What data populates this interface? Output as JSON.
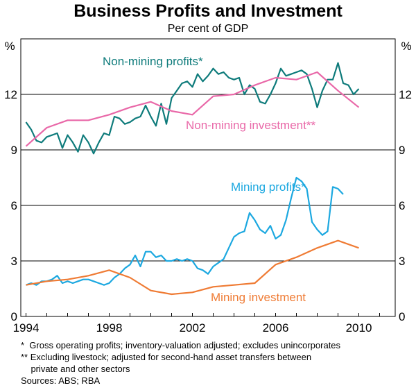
{
  "chart_data": {
    "type": "line",
    "title": "Business Profits and Investment",
    "subtitle": "Per cent of GDP",
    "y_unit_left": "%",
    "y_unit_right": "%",
    "ylim": [
      0,
      15
    ],
    "yticks": [
      0,
      3,
      6,
      9,
      12
    ],
    "xlim": [
      1993.75,
      2011.75
    ],
    "xticks": [
      1994,
      1998,
      2002,
      2006,
      2010
    ],
    "series": [
      {
        "name": "Non-mining profits*",
        "color": "#0e7b7b",
        "x": [
          1994.0,
          1994.25,
          1994.5,
          1994.75,
          1995.0,
          1995.25,
          1995.5,
          1995.75,
          1996.0,
          1996.25,
          1996.5,
          1996.75,
          1997.0,
          1997.25,
          1997.5,
          1997.75,
          1998.0,
          1998.25,
          1998.5,
          1998.75,
          1999.0,
          1999.25,
          1999.5,
          1999.75,
          2000.0,
          2000.25,
          2000.5,
          2000.75,
          2001.0,
          2001.25,
          2001.5,
          2001.75,
          2002.0,
          2002.25,
          2002.5,
          2002.75,
          2003.0,
          2003.25,
          2003.5,
          2003.75,
          2004.0,
          2004.25,
          2004.5,
          2004.75,
          2005.0,
          2005.25,
          2005.5,
          2005.75,
          2006.0,
          2006.25,
          2006.5,
          2006.75,
          2007.0,
          2007.25,
          2007.5,
          2007.75,
          2008.0,
          2008.25,
          2008.5,
          2008.75,
          2009.0,
          2009.25,
          2009.5,
          2009.75,
          2010.0,
          2010.25,
          2010.5,
          2010.75
        ],
        "values": [
          10.5,
          10.1,
          9.5,
          9.4,
          9.7,
          9.8,
          9.9,
          9.1,
          9.8,
          9.4,
          8.9,
          9.8,
          9.4,
          8.8,
          9.4,
          9.9,
          9.8,
          10.8,
          10.7,
          10.4,
          10.5,
          10.7,
          10.8,
          11.4,
          10.8,
          10.3,
          11.5,
          10.4,
          11.8,
          12.2,
          12.6,
          12.7,
          12.4,
          13.1,
          12.7,
          13.0,
          13.4,
          13.1,
          13.2,
          12.9,
          12.8,
          12.9,
          12.0,
          12.5,
          12.3,
          11.6,
          11.5,
          12.0,
          12.6,
          13.4,
          13.0,
          13.1,
          13.2,
          13.3,
          13.1,
          12.3,
          11.3,
          12.2,
          12.8,
          12.8,
          13.7,
          12.6,
          12.5,
          12.0,
          12.3,
          null,
          null,
          null
        ]
      },
      {
        "name": "Non-mining investment**",
        "color": "#e968a8",
        "x": [
          1994.0,
          1995.0,
          1996.0,
          1997.0,
          1998.0,
          1999.0,
          2000.0,
          2001.0,
          2002.0,
          2003.0,
          2004.0,
          2005.0,
          2006.0,
          2007.0,
          2008.0,
          2009.0,
          2010.0
        ],
        "values": [
          9.2,
          10.2,
          10.6,
          10.6,
          10.9,
          11.3,
          11.6,
          11.1,
          10.9,
          11.9,
          12.0,
          12.5,
          12.9,
          12.8,
          13.2,
          12.2,
          11.3
        ]
      },
      {
        "name": "Mining profits*",
        "color": "#1ca8e0",
        "x": [
          1994.0,
          1994.25,
          1994.5,
          1994.75,
          1995.0,
          1995.25,
          1995.5,
          1995.75,
          1996.0,
          1996.25,
          1996.5,
          1996.75,
          1997.0,
          1997.25,
          1997.5,
          1997.75,
          1998.0,
          1998.25,
          1998.5,
          1998.75,
          1999.0,
          1999.25,
          1999.5,
          1999.75,
          2000.0,
          2000.25,
          2000.5,
          2000.75,
          2001.0,
          2001.25,
          2001.5,
          2001.75,
          2002.0,
          2002.25,
          2002.5,
          2002.75,
          2003.0,
          2003.25,
          2003.5,
          2003.75,
          2004.0,
          2004.25,
          2004.5,
          2004.75,
          2005.0,
          2005.25,
          2005.5,
          2005.75,
          2006.0,
          2006.25,
          2006.5,
          2006.75,
          2007.0,
          2007.25,
          2007.5,
          2007.75,
          2008.0,
          2008.25,
          2008.5,
          2008.75,
          2009.0,
          2009.25,
          2009.5,
          2009.75,
          2010.0,
          2010.25,
          2010.5,
          2010.75
        ],
        "values": [
          1.7,
          1.8,
          1.7,
          1.9,
          1.9,
          2.0,
          2.2,
          1.8,
          1.9,
          1.8,
          1.9,
          2.0,
          2.0,
          1.9,
          1.8,
          1.7,
          1.8,
          2.1,
          2.3,
          2.6,
          2.8,
          3.3,
          2.7,
          3.5,
          3.5,
          3.2,
          3.3,
          3.0,
          3.0,
          3.1,
          3.0,
          3.1,
          3.0,
          2.6,
          2.5,
          2.3,
          2.7,
          2.9,
          3.1,
          3.7,
          4.3,
          4.5,
          4.6,
          5.6,
          5.2,
          4.7,
          4.5,
          4.9,
          4.2,
          4.4,
          5.2,
          6.4,
          7.5,
          7.3,
          6.9,
          5.1,
          4.7,
          4.4,
          4.6,
          7.0,
          6.9,
          6.6,
          null,
          null,
          null,
          null,
          null,
          null
        ]
      },
      {
        "name": "Mining investment",
        "color": "#ef7b34",
        "x": [
          1994.0,
          1995.0,
          1996.0,
          1997.0,
          1998.0,
          1999.0,
          2000.0,
          2001.0,
          2002.0,
          2003.0,
          2004.0,
          2005.0,
          2006.0,
          2007.0,
          2008.0,
          2009.0,
          2010.0
        ],
        "values": [
          1.7,
          1.9,
          2.0,
          2.2,
          2.5,
          2.1,
          1.4,
          1.2,
          1.3,
          1.6,
          1.7,
          1.8,
          2.8,
          3.2,
          3.7,
          4.1,
          3.7
        ]
      }
    ],
    "notes": [
      "*  Gross operating profits; inventory-valuation adjusted; excludes unincorporates",
      "** Excluding livestock; adjusted for second-hand asset transfers between",
      "    private and other sectors",
      "Sources: ABS; RBA"
    ]
  }
}
